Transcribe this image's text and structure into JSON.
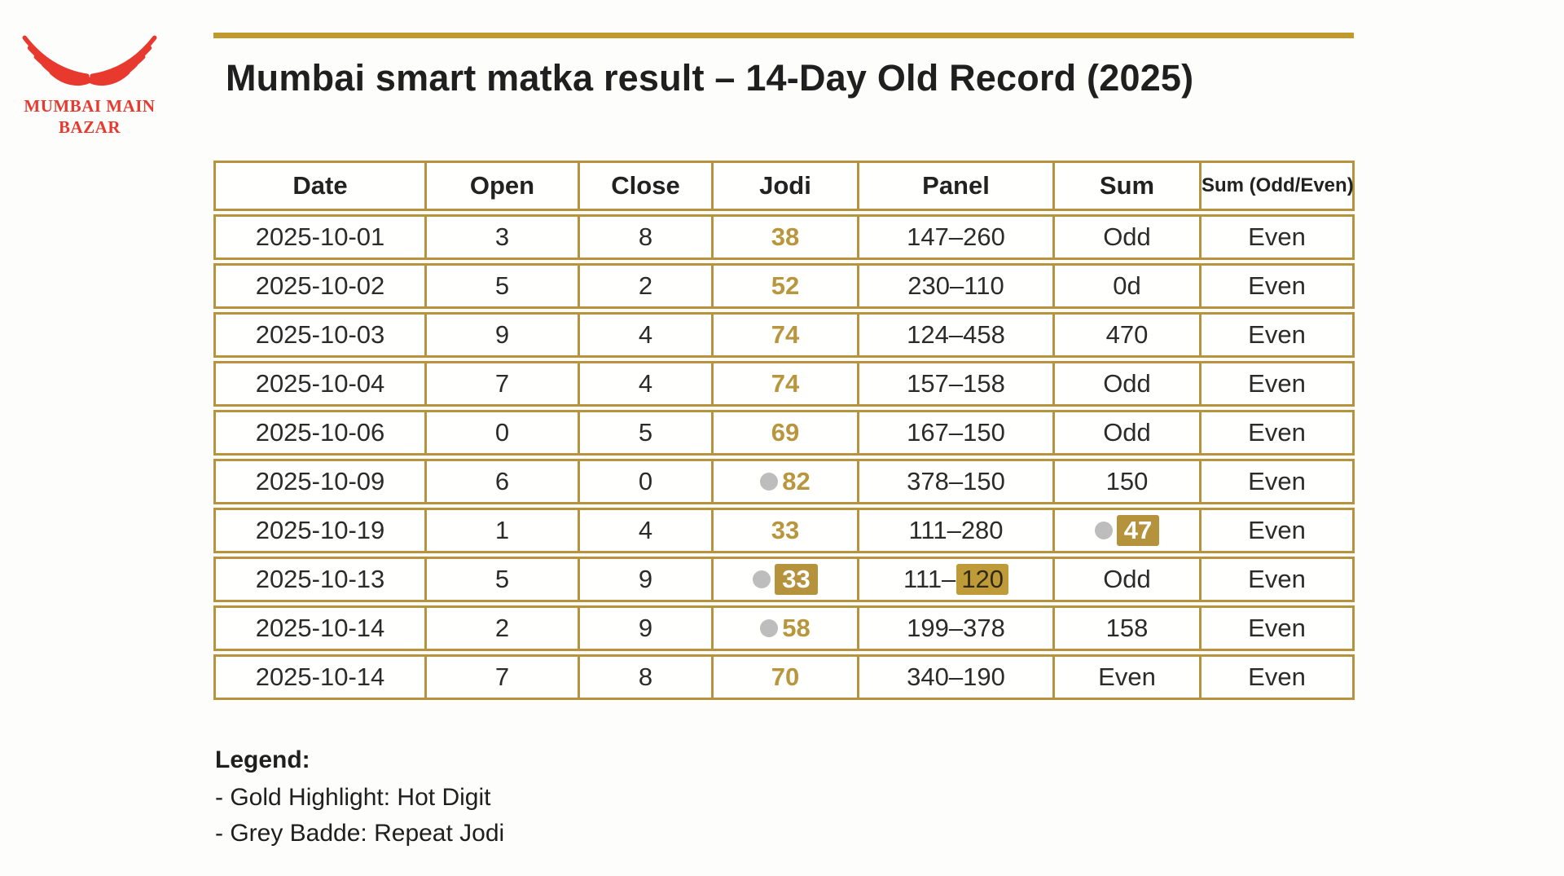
{
  "logo": {
    "line1": "MUMBAI MAIN",
    "line2": "BAZAR",
    "icon": "red-wings-icon"
  },
  "title": "Mumbai smart matka result – 14-Day Old Record (2025)",
  "table": {
    "columns": [
      {
        "key": "date",
        "label": "Date"
      },
      {
        "key": "open",
        "label": "Open"
      },
      {
        "key": "close",
        "label": "Close"
      },
      {
        "key": "jodi",
        "label": "Jodi"
      },
      {
        "key": "panel",
        "label": "Panel"
      },
      {
        "key": "sum",
        "label": "Sum"
      },
      {
        "key": "parity",
        "label": "Sum (Odd/Even)"
      }
    ],
    "rows": [
      {
        "date": "2025-10-01",
        "open": "3",
        "close": "8",
        "jodi": {
          "value": "38",
          "dot": false,
          "badge": false
        },
        "panel": {
          "prefix": "147–260",
          "highlight": ""
        },
        "sum": {
          "value": "Odd",
          "dot": false,
          "badge": false
        },
        "parity": "Even"
      },
      {
        "date": "2025-10-02",
        "open": "5",
        "close": "2",
        "jodi": {
          "value": "52",
          "dot": false,
          "badge": false
        },
        "panel": {
          "prefix": "230–110",
          "highlight": ""
        },
        "sum": {
          "value": "0d",
          "dot": false,
          "badge": false
        },
        "parity": "Even"
      },
      {
        "date": "2025-10-03",
        "open": "9",
        "close": "4",
        "jodi": {
          "value": "74",
          "dot": false,
          "badge": false
        },
        "panel": {
          "prefix": "124–458",
          "highlight": ""
        },
        "sum": {
          "value": "470",
          "dot": false,
          "badge": false
        },
        "parity": "Even"
      },
      {
        "date": "2025-10-04",
        "open": "7",
        "close": "4",
        "jodi": {
          "value": "74",
          "dot": false,
          "badge": false
        },
        "panel": {
          "prefix": "157–158",
          "highlight": ""
        },
        "sum": {
          "value": "Odd",
          "dot": false,
          "badge": false
        },
        "parity": "Even"
      },
      {
        "date": "2025-10-06",
        "open": "0",
        "close": "5",
        "jodi": {
          "value": "69",
          "dot": false,
          "badge": false
        },
        "panel": {
          "prefix": "167–150",
          "highlight": ""
        },
        "sum": {
          "value": "Odd",
          "dot": false,
          "badge": false
        },
        "parity": "Even"
      },
      {
        "date": "2025-10-09",
        "open": "6",
        "close": "0",
        "jodi": {
          "value": "82",
          "dot": true,
          "badge": false
        },
        "panel": {
          "prefix": "378–150",
          "highlight": ""
        },
        "sum": {
          "value": "150",
          "dot": false,
          "badge": false
        },
        "parity": "Even"
      },
      {
        "date": "2025-10-19",
        "open": "1",
        "close": "4",
        "jodi": {
          "value": "33",
          "dot": false,
          "badge": false
        },
        "panel": {
          "prefix": "111–280",
          "highlight": ""
        },
        "sum": {
          "value": "47",
          "dot": true,
          "badge": true
        },
        "parity": "Even"
      },
      {
        "date": "2025-10-13",
        "open": "5",
        "close": "9",
        "jodi": {
          "value": "33",
          "dot": true,
          "badge": true
        },
        "panel": {
          "prefix": "111–",
          "highlight": "120"
        },
        "sum": {
          "value": "Odd",
          "dot": false,
          "badge": false
        },
        "parity": "Even"
      },
      {
        "date": "2025-10-14",
        "open": "2",
        "close": "9",
        "jodi": {
          "value": "58",
          "dot": true,
          "badge": false
        },
        "panel": {
          "prefix": "199–378",
          "highlight": ""
        },
        "sum": {
          "value": "158",
          "dot": false,
          "badge": false
        },
        "parity": "Even"
      },
      {
        "date": "2025-10-14",
        "open": "7",
        "close": "8",
        "jodi": {
          "value": "70",
          "dot": false,
          "badge": false
        },
        "panel": {
          "prefix": "340–190",
          "highlight": ""
        },
        "sum": {
          "value": "Even",
          "dot": false,
          "badge": false
        },
        "parity": "Even"
      }
    ]
  },
  "legend": {
    "heading": "Legend:",
    "items": [
      "- Gold Highlight: Hot Digit",
      "- Grey Badde: Repeat Jodi"
    ]
  },
  "colors": {
    "gold_border": "#b6933c",
    "gold_rule": "#bf9b2d",
    "gold_text": "#b8963e",
    "badge_bg": "#b5923c",
    "highlight_bg": "#bf9a39",
    "dot_grey": "#bdbdbd",
    "logo_red": "#e8392f",
    "text_dark": "#2b2b2b"
  }
}
